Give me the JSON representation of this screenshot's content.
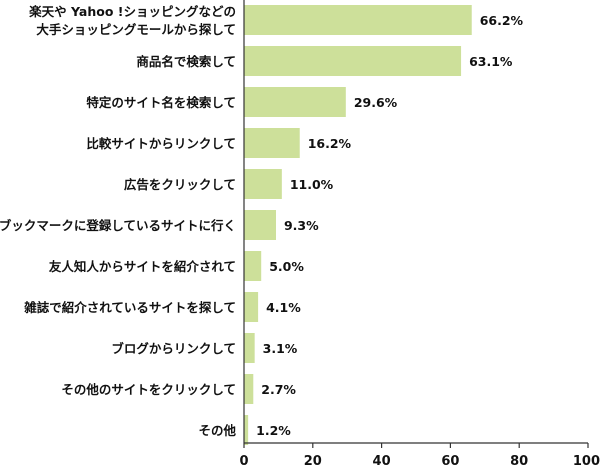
{
  "chart_data": {
    "type": "bar",
    "orientation": "horizontal",
    "categories": [
      "楽天や Yahoo !ショッピングなどの\n大手ショッピングモールから探して",
      "商品名で検索して",
      "特定のサイト名を検索して",
      "比較サイトからリンクして",
      "広告をクリックして",
      "ブックマークに登録しているサイトに行く",
      "友人知人からサイトを紹介されて",
      "雑誌で紹介されているサイトを探して",
      "ブログからリンクして",
      "その他のサイトをクリックして",
      "その他"
    ],
    "values": [
      66.2,
      63.1,
      29.6,
      16.2,
      11.0,
      9.3,
      5.0,
      4.1,
      3.1,
      2.7,
      1.2
    ],
    "value_labels": [
      "66.2%",
      "63.1%",
      "29.6%",
      "16.2%",
      "11.0%",
      "9.3%",
      "5.0%",
      "4.1%",
      "3.1%",
      "2.7%",
      "1.2%"
    ],
    "xlim": [
      0,
      100
    ],
    "xticks": [
      0,
      20,
      40,
      60,
      80,
      100
    ],
    "xtick_labels": [
      "0",
      "20",
      "40",
      "60",
      "80",
      "100"
    ],
    "bar_color": "#cde09a",
    "axis_color": "#333333",
    "grid": false,
    "title": "",
    "xlabel": "",
    "ylabel": ""
  }
}
